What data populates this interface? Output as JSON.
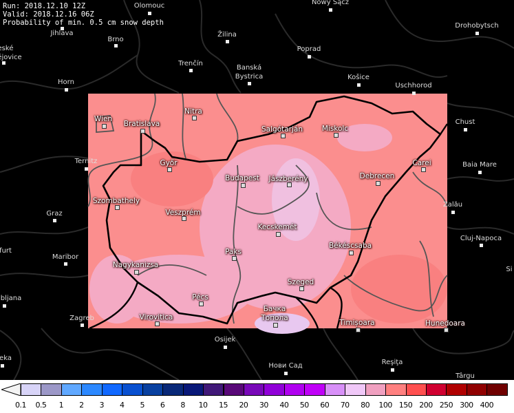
{
  "header": {
    "run": "Run: 2018.12.10 12Z",
    "valid": "Valid: 2018.12.16 06Z",
    "parameter": "Probability of min. 0.5 cm snow depth"
  },
  "cities_outside": [
    "Olomouc",
    "Nowy Sącz",
    "Drohobytsch",
    "Jihlava",
    "Brno",
    "eské",
    "ějovice",
    "Žilina",
    "Poprad",
    "Trenčín",
    "Banská",
    "Bystrica",
    "Košice",
    "Horn",
    "Uschhorod",
    "Chust",
    "Ternitz",
    "Baia Mare",
    "Zalău",
    "Graz",
    "Cluj-Napoca",
    "furt",
    "Maribor",
    "bljana",
    "Zagreb",
    "Osijek",
    "eka",
    "Нови Сад",
    "Reşiţa",
    "Târgu",
    "Si"
  ],
  "cities_inside": [
    "Wien",
    "Bratislava",
    "Nitra",
    "Salgótarján",
    "Miskolc",
    "Győr",
    "Budapest",
    "Jászberény",
    "Debrecen",
    "Carei",
    "Szombathely",
    "Veszprém",
    "Kecskemét",
    "Békéscsaba",
    "Paks",
    "Nagykanizsa",
    "Szeged",
    "Pécs",
    "Бачка",
    "Топола",
    "Virovitica",
    "Timișoara",
    "Hunedoara"
  ],
  "legend": {
    "unit_hint": "",
    "ticks": [
      "0.1",
      "0.5",
      "1",
      "2",
      "3",
      "4",
      "5",
      "6",
      "8",
      "10",
      "15",
      "20",
      "30",
      "40",
      "50",
      "60",
      "70",
      "80",
      "100",
      "150",
      "200",
      "250",
      "300",
      "400"
    ],
    "colors": [
      "#d8d4f8",
      "#9c98c8",
      "#60a8ff",
      "#2c88ff",
      "#1068ff",
      "#0850d0",
      "#0840a0",
      "#082878",
      "#081878",
      "#401878",
      "#580878",
      "#7808b8",
      "#9000d8",
      "#b000f0",
      "#c000f8",
      "#d890f8",
      "#f0c8f8",
      "#f0a0c0",
      "#ff8080",
      "#ff5050",
      "#d00030",
      "#b00000",
      "#900000",
      "#700000"
    ],
    "under_color": "#f4f4f4",
    "over_color": "#3a0000"
  },
  "field_colors": {
    "base": "#fb8e8e",
    "light": "#f4aac4",
    "lighter": "#f0c0e0",
    "darker": "#f98080"
  }
}
